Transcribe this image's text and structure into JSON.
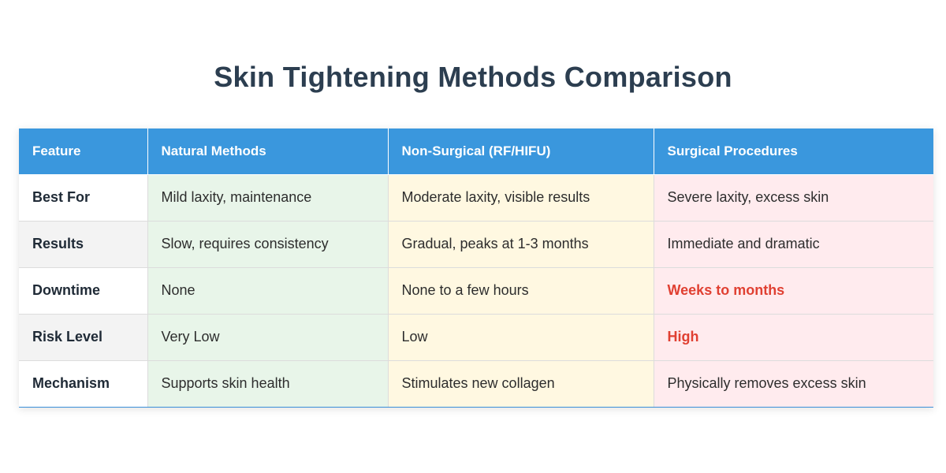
{
  "title": "Skin Tightening Methods Comparison",
  "table": {
    "headers": [
      "Feature",
      "Natural Methods",
      "Non-Surgical (RF/HIFU)",
      "Surgical Procedures"
    ],
    "rows": [
      {
        "feature": "Best For",
        "natural": "Mild laxity, maintenance",
        "nonsurgical": "Moderate laxity, visible results",
        "surgical": "Severe laxity, excess skin",
        "surgical_highlight": false
      },
      {
        "feature": "Results",
        "natural": "Slow, requires consistency",
        "nonsurgical": "Gradual, peaks at 1-3 months",
        "surgical": "Immediate and dramatic",
        "surgical_highlight": false
      },
      {
        "feature": "Downtime",
        "natural": "None",
        "nonsurgical": "None to a few hours",
        "surgical": "Weeks to months",
        "surgical_highlight": true
      },
      {
        "feature": "Risk Level",
        "natural": "Very Low",
        "nonsurgical": "Low",
        "surgical": "High",
        "surgical_highlight": true
      },
      {
        "feature": "Mechanism",
        "natural": "Supports skin health",
        "nonsurgical": "Stimulates new collagen",
        "surgical": "Physically removes excess skin",
        "surgical_highlight": false
      }
    ]
  },
  "colors": {
    "header_bg": "#3a97dd",
    "natural_bg": "#e8f5e9",
    "nonsurgical_bg": "#fff8e1",
    "surgical_bg": "#ffebee",
    "warning_text": "#e04032",
    "title_text": "#2c3e50"
  }
}
